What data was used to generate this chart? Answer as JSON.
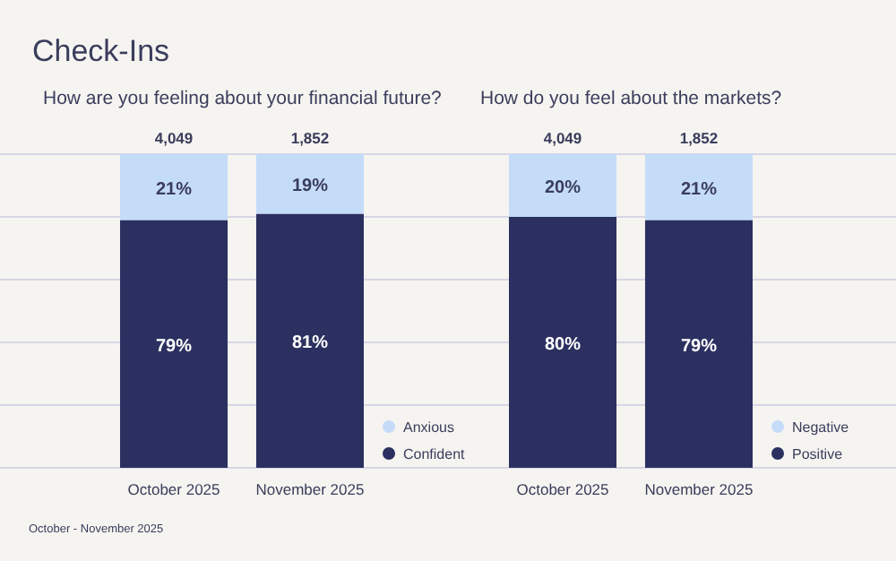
{
  "chart_data": [
    {
      "type": "bar",
      "title": "Check-Ins",
      "subtitle": "How are you feeling about your financial future?",
      "stacked": true,
      "categories": [
        "October 2025",
        "November 2025"
      ],
      "series": [
        {
          "name": "Confident",
          "color": "#2b3060",
          "values": [
            79,
            81
          ],
          "value_labels": [
            "79%",
            "81%"
          ]
        },
        {
          "name": "Anxious",
          "color": "#c5dcf9",
          "values": [
            21,
            19
          ],
          "value_labels": [
            "21%",
            "19%"
          ]
        }
      ],
      "ylim": [
        0,
        100
      ],
      "yticks": [
        {
          "value": 0,
          "label": null
        },
        {
          "value": 20,
          "label": null
        },
        {
          "value": 40,
          "label": null
        },
        {
          "value": 60,
          "label": null
        },
        {
          "value": 80,
          "label": null
        },
        {
          "value": 100,
          "label": null
        }
      ],
      "tick_labels": "x",
      "grid": "y",
      "legend": "bottom right",
      "annotations": [
        {
          "text": "4,049",
          "x": "October 2025",
          "y": 100
        },
        {
          "text": "1,852",
          "x": "November 2025",
          "y": 100
        },
        "October - November 2025"
      ]
    },
    {
      "type": "bar",
      "subtitle": "How do you feel about the markets?",
      "stacked": true,
      "categories": [
        "October 2025",
        "November 2025"
      ],
      "series": [
        {
          "name": "Positive",
          "color": "#2b3060",
          "values": [
            80,
            79
          ],
          "value_labels": [
            "80%",
            "79%"
          ]
        },
        {
          "name": "Negative",
          "color": "#c5dcf9",
          "values": [
            20,
            21
          ],
          "value_labels": [
            "20%",
            "21%"
          ]
        }
      ],
      "ylim": [
        0,
        100
      ],
      "yticks": [
        {
          "value": 0,
          "label": null
        },
        {
          "value": 20,
          "label": null
        },
        {
          "value": 40,
          "label": null
        },
        {
          "value": 60,
          "label": null
        },
        {
          "value": 80,
          "label": null
        },
        {
          "value": 100,
          "label": null
        }
      ],
      "tick_labels": "x",
      "grid": "y",
      "legend": "bottom right",
      "annotations": [
        {
          "text": "4,049",
          "x": "October 2025",
          "y": 100
        },
        {
          "text": "1,852",
          "x": "November 2025",
          "y": 100
        }
      ]
    }
  ]
}
